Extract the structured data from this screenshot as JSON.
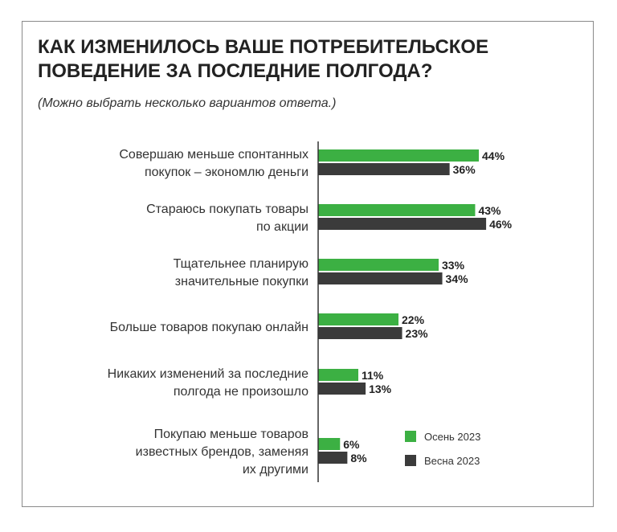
{
  "title": "КАК ИЗМЕНИЛОСЬ ВАШЕ ПОТРЕБИТЕЛЬСКОЕ\nПОВЕДЕНИЕ ЗА ПОСЛЕДНИЕ ПОЛГОДА?",
  "subtitle": "(Можно выбрать несколько вариантов ответа.)",
  "colors": {
    "autumn": "#3cb043",
    "spring": "#3b3b3b",
    "axis": "#333333"
  },
  "chart_data": {
    "type": "bar",
    "orientation": "horizontal",
    "title": "КАК ИЗМЕНИЛОСЬ ВАШЕ ПОТРЕБИТЕЛЬСКОЕ ПОВЕДЕНИЕ ЗА ПОСЛЕДНИЕ ПОЛГОДА?",
    "subtitle": "(Можно выбрать несколько вариантов ответа.)",
    "categories": [
      [
        "Совершаю меньше спонтанных",
        "покупок – экономлю деньги"
      ],
      [
        "Стараюсь покупать товары",
        "по акции"
      ],
      [
        "Тщательнее планирую",
        "значительные покупки"
      ],
      [
        "Больше товаров покупаю онлайн"
      ],
      [
        "Никаких изменений за последние",
        "полгода не произошло"
      ],
      [
        "Покупаю меньше товаров",
        "известных брендов, заменяя",
        "их другими"
      ]
    ],
    "series": [
      {
        "name": "Осень 2023",
        "values": [
          44,
          43,
          33,
          22,
          11,
          6
        ],
        "labels": [
          "44%",
          "43%",
          "33%",
          "22%",
          "11%",
          "6%"
        ]
      },
      {
        "name": "Весна 2023",
        "values": [
          36,
          46,
          34,
          23,
          13,
          8
        ],
        "labels": [
          "36%",
          "46%",
          "34%",
          "23%",
          "13%",
          "8%"
        ]
      }
    ],
    "unit": "%",
    "xlim": [
      0,
      46
    ],
    "grid": false,
    "legend_position": "bottom-right"
  }
}
